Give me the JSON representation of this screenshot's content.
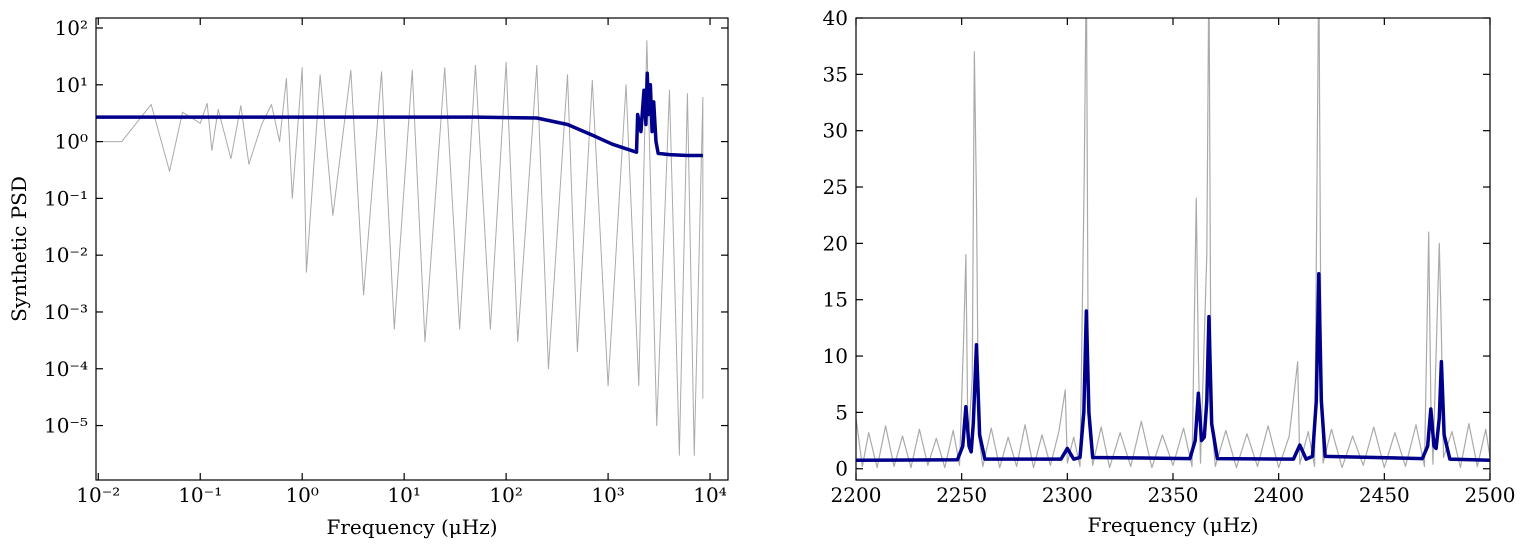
{
  "chart_data": [
    {
      "type": "line",
      "xlabel": "Frequency (μHz)",
      "ylabel": "Synthetic PSD",
      "xlog": true,
      "ylog": true,
      "xlim": [
        0.0095,
        15000
      ],
      "ylim": [
        1.1e-06,
        150
      ],
      "xticks": [
        {
          "value": 0.01,
          "label": "10⁻²"
        },
        {
          "value": 0.1,
          "label": "10⁻¹"
        },
        {
          "value": 1,
          "label": "10⁰"
        },
        {
          "value": 10,
          "label": "10¹"
        },
        {
          "value": 100,
          "label": "10²"
        },
        {
          "value": 1000,
          "label": "10³"
        },
        {
          "value": 10000,
          "label": "10⁴"
        }
      ],
      "yticks": [
        {
          "value": 1e-05,
          "label": "10⁻⁵"
        },
        {
          "value": 0.0001,
          "label": "10⁻⁴"
        },
        {
          "value": 0.001,
          "label": "10⁻³"
        },
        {
          "value": 0.01,
          "label": "10⁻²"
        },
        {
          "value": 0.1,
          "label": "10⁻¹"
        },
        {
          "value": 1,
          "label": "10⁰"
        },
        {
          "value": 10,
          "label": "10¹"
        },
        {
          "value": 100,
          "label": "10²"
        }
      ],
      "series": [
        {
          "color": "#aaaaaa",
          "width": 1,
          "x": [
            0.009,
            0.017,
            0.033,
            0.05,
            0.067,
            0.1,
            0.117,
            0.13,
            0.15,
            0.2,
            0.25,
            0.3,
            0.4,
            0.5,
            0.6,
            0.7,
            0.8,
            1.0,
            1.1,
            1.5,
            2,
            3,
            4,
            6,
            8,
            12,
            16,
            25,
            35,
            50,
            70,
            100,
            130,
            200,
            260,
            400,
            500,
            700,
            1000,
            1500,
            2000,
            2400,
            3000,
            4000,
            5000,
            6000,
            7000,
            8500,
            8500
          ],
          "values": [
            1.0,
            1.0,
            4.5,
            0.3,
            3.3,
            2.1,
            4.7,
            0.7,
            3.7,
            0.5,
            4.3,
            0.4,
            2.0,
            4.5,
            1.0,
            13,
            0.1,
            20,
            0.005,
            15,
            0.05,
            18,
            0.002,
            17,
            0.0005,
            18,
            0.0003,
            20,
            0.0005,
            22,
            0.0005,
            25,
            0.0003,
            22,
            0.0001,
            15,
            0.0002,
            12,
            5e-05,
            10,
            5e-05,
            60,
            1e-05,
            8,
            3e-06,
            7,
            3e-06,
            6,
            3e-05
          ]
        },
        {
          "color": "#00008b",
          "width": 3.5,
          "x": [
            0.009,
            1,
            50,
            200,
            400,
            700,
            1100,
            1600,
            1900,
            1950,
            2100,
            2250,
            2350,
            2420,
            2500,
            2600,
            2700,
            2800,
            2950,
            3100,
            4000,
            6000,
            8500
          ],
          "values": [
            2.7,
            2.7,
            2.7,
            2.6,
            2.0,
            1.3,
            0.9,
            0.72,
            0.65,
            3,
            1.5,
            8,
            2,
            16,
            3,
            10,
            1.5,
            5,
            1,
            0.62,
            0.59,
            0.57,
            0.57
          ]
        }
      ]
    },
    {
      "type": "line",
      "xlabel": "Frequency (μHz)",
      "xlog": false,
      "ylog": false,
      "xlim": [
        2200,
        2500
      ],
      "ylim": [
        -1,
        40
      ],
      "xticks": [
        2200,
        2250,
        2300,
        2350,
        2400,
        2450,
        2500
      ],
      "yticks": [
        0,
        5,
        10,
        15,
        20,
        25,
        30,
        35,
        40
      ],
      "series": [
        {
          "color": "#aaaaaa",
          "width": 1.2,
          "x": [
            2200,
            2203,
            2206,
            2210,
            2214,
            2218,
            2222,
            2226,
            2230,
            2234,
            2238,
            2242,
            2246,
            2249,
            2251,
            2252,
            2253,
            2255,
            2256,
            2257,
            2258,
            2260,
            2264,
            2268,
            2272,
            2276,
            2280,
            2284,
            2288,
            2292,
            2296,
            2299,
            2300,
            2303,
            2306,
            2308,
            2309,
            2310,
            2312,
            2316,
            2320,
            2325,
            2330,
            2335,
            2340,
            2345,
            2350,
            2355,
            2359,
            2361,
            2362,
            2363,
            2366,
            2367,
            2368,
            2370,
            2375,
            2380,
            2385,
            2390,
            2395,
            2400,
            2405,
            2409,
            2410,
            2414,
            2417,
            2419,
            2420,
            2421,
            2425,
            2430,
            2435,
            2440,
            2445,
            2450,
            2455,
            2460,
            2465,
            2469,
            2471,
            2472,
            2473,
            2476,
            2477,
            2478,
            2482,
            2486,
            2490,
            2494,
            2498,
            2500
          ],
          "values": [
            4.5,
            0.2,
            3.2,
            0.1,
            3.8,
            0.2,
            2.9,
            0.1,
            3.5,
            0.3,
            2.7,
            0.1,
            3.4,
            0.3,
            12,
            19,
            2,
            8,
            37,
            24,
            3,
            0.2,
            3.6,
            0.1,
            2.8,
            0.2,
            3.9,
            0.1,
            3.0,
            0.3,
            3.3,
            7,
            0.5,
            2.8,
            0.2,
            26,
            45,
            4,
            0.3,
            3.7,
            0.1,
            3.2,
            0.2,
            4.2,
            0.1,
            3.0,
            0.3,
            3.6,
            0.2,
            24,
            10,
            0.5,
            19,
            45,
            5,
            0.2,
            3.4,
            0.1,
            3.1,
            0.2,
            3.8,
            0.1,
            2.9,
            9.5,
            0.4,
            3.3,
            0.2,
            45,
            11,
            0.5,
            3.5,
            0.1,
            2.9,
            0.3,
            3.7,
            0.1,
            3.2,
            0.2,
            3.9,
            0.2,
            21,
            6,
            0.4,
            20,
            12,
            1,
            3.3,
            0.1,
            4.0,
            0.2,
            3.5,
            1.0
          ]
        },
        {
          "color": "#00008b",
          "width": 3.5,
          "x": [
            2200,
            2248,
            2250.5,
            2252,
            2253.5,
            2254.5,
            2255.5,
            2257,
            2258.5,
            2261,
            2297,
            2300,
            2303,
            2306,
            2307.8,
            2309,
            2310.2,
            2312,
            2358,
            2360.5,
            2362,
            2363.5,
            2364.8,
            2366,
            2367,
            2368.3,
            2371,
            2407,
            2410,
            2413,
            2416,
            2417.8,
            2419,
            2420.2,
            2422,
            2468,
            2470.5,
            2472,
            2473.5,
            2474.5,
            2476,
            2477,
            2478.3,
            2481,
            2500
          ],
          "values": [
            0.75,
            0.8,
            2,
            5.5,
            2,
            1.5,
            4,
            11,
            3,
            0.85,
            0.85,
            1.8,
            0.85,
            1,
            5,
            14,
            5,
            1,
            0.9,
            2.5,
            6.7,
            2.5,
            2.8,
            6,
            13.5,
            4,
            0.9,
            0.85,
            2.1,
            0.85,
            1.1,
            6,
            17.3,
            6,
            1.1,
            0.9,
            2,
            5.3,
            2,
            1.8,
            4.5,
            9.5,
            3,
            0.85,
            0.75
          ]
        }
      ]
    }
  ]
}
